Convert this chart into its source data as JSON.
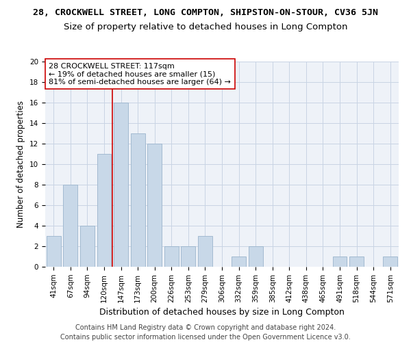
{
  "title": "28, CROCKWELL STREET, LONG COMPTON, SHIPSTON-ON-STOUR, CV36 5JN",
  "subtitle": "Size of property relative to detached houses in Long Compton",
  "xlabel": "Distribution of detached houses by size in Long Compton",
  "ylabel": "Number of detached properties",
  "categories": [
    "41sqm",
    "67sqm",
    "94sqm",
    "120sqm",
    "147sqm",
    "173sqm",
    "200sqm",
    "226sqm",
    "253sqm",
    "279sqm",
    "306sqm",
    "332sqm",
    "359sqm",
    "385sqm",
    "412sqm",
    "438sqm",
    "465sqm",
    "491sqm",
    "518sqm",
    "544sqm",
    "571sqm"
  ],
  "values": [
    3,
    8,
    4,
    11,
    16,
    13,
    12,
    2,
    2,
    3,
    0,
    1,
    2,
    0,
    0,
    0,
    0,
    1,
    1,
    0,
    1
  ],
  "bar_color": "#c8d8e8",
  "bar_edge_color": "#9ab4cc",
  "grid_color": "#c8d4e4",
  "background_color": "#eef2f8",
  "vline_x": 3.5,
  "vline_color": "#cc0000",
  "annotation_text": "28 CROCKWELL STREET: 117sqm\n← 19% of detached houses are smaller (15)\n81% of semi-detached houses are larger (64) →",
  "annotation_box_color": "#ffffff",
  "annotation_box_edge": "#cc0000",
  "footer": "Contains HM Land Registry data © Crown copyright and database right 2024.\nContains public sector information licensed under the Open Government Licence v3.0.",
  "ylim": [
    0,
    20
  ],
  "yticks": [
    0,
    2,
    4,
    6,
    8,
    10,
    12,
    14,
    16,
    18,
    20
  ],
  "title_fontsize": 9.5,
  "subtitle_fontsize": 9.5,
  "xlabel_fontsize": 9,
  "ylabel_fontsize": 8.5,
  "tick_fontsize": 7.5,
  "footer_fontsize": 7,
  "annotation_fontsize": 8
}
